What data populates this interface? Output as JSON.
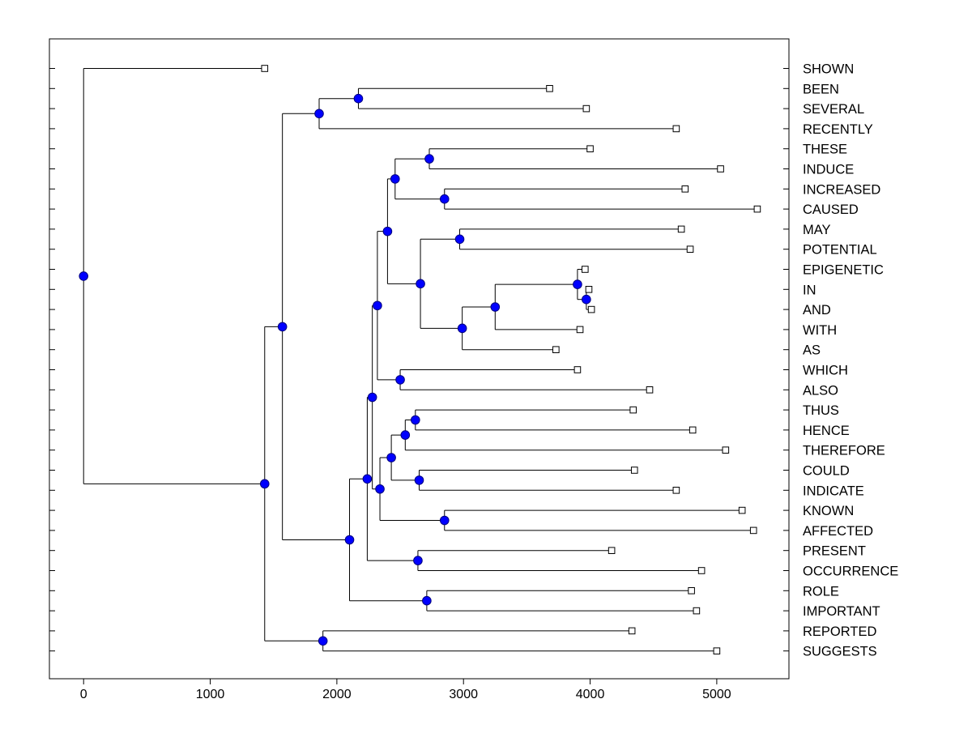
{
  "chart_data": {
    "type": "dendrogram",
    "title": "",
    "xlabel": "",
    "ylabel": "",
    "xlim": [
      -270,
      5570
    ],
    "x_ticks": [
      0,
      1000,
      2000,
      3000,
      4000,
      5000
    ],
    "x_tick_labels": [
      "0",
      "1000",
      "2000",
      "3000",
      "4000",
      "5000"
    ],
    "grid": false,
    "leaves": [
      {
        "label": "SHOWN",
        "x": 1430
      },
      {
        "label": "BEEN",
        "x": 3680
      },
      {
        "label": "SEVERAL",
        "x": 3970
      },
      {
        "label": "RECENTLY",
        "x": 4680
      },
      {
        "label": "THESE",
        "x": 4000
      },
      {
        "label": "INDUCE",
        "x": 5030
      },
      {
        "label": "INCREASED",
        "x": 4750
      },
      {
        "label": "CAUSED",
        "x": 5320
      },
      {
        "label": "MAY",
        "x": 4720
      },
      {
        "label": "POTENTIAL",
        "x": 4790
      },
      {
        "label": "EPIGENETIC",
        "x": 3960
      },
      {
        "label": "IN",
        "x": 3990
      },
      {
        "label": "AND",
        "x": 4010
      },
      {
        "label": "WITH",
        "x": 3920
      },
      {
        "label": "AS",
        "x": 3730
      },
      {
        "label": "WHICH",
        "x": 3900
      },
      {
        "label": "ALSO",
        "x": 4470
      },
      {
        "label": "THUS",
        "x": 4340
      },
      {
        "label": "HENCE",
        "x": 4810
      },
      {
        "label": "THEREFORE",
        "x": 5070
      },
      {
        "label": "COULD",
        "x": 4350
      },
      {
        "label": "INDICATE",
        "x": 4680
      },
      {
        "label": "KNOWN",
        "x": 5200
      },
      {
        "label": "AFFECTED",
        "x": 5290
      },
      {
        "label": "PRESENT",
        "x": 4170
      },
      {
        "label": "OCCURRENCE",
        "x": 4880
      },
      {
        "label": "ROLE",
        "x": 4800
      },
      {
        "label": "IMPORTANT",
        "x": 4840
      },
      {
        "label": "REPORTED",
        "x": 4330
      },
      {
        "label": "SUGGESTS",
        "x": 5000
      }
    ],
    "nodes": [
      {
        "id": "n1",
        "x": 2170,
        "children": [
          "L1",
          "L2"
        ]
      },
      {
        "id": "n2",
        "x": 1860,
        "children": [
          "n1",
          "L3"
        ]
      },
      {
        "id": "n3",
        "x": 2730,
        "children": [
          "L4",
          "L5"
        ]
      },
      {
        "id": "n4",
        "x": 2850,
        "children": [
          "L6",
          "L7"
        ]
      },
      {
        "id": "n5",
        "x": 2460,
        "children": [
          "n3",
          "n4"
        ]
      },
      {
        "id": "n6",
        "x": 2970,
        "children": [
          "L8",
          "L9"
        ]
      },
      {
        "id": "n7",
        "x": 3970,
        "children": [
          "L11",
          "L12"
        ]
      },
      {
        "id": "n8",
        "x": 3900,
        "children": [
          "L10",
          "n7"
        ]
      },
      {
        "id": "n9",
        "x": 3250,
        "children": [
          "n8",
          "L13"
        ]
      },
      {
        "id": "n10",
        "x": 2990,
        "children": [
          "n9",
          "L14"
        ]
      },
      {
        "id": "n11",
        "x": 2660,
        "children": [
          "n6",
          "n10"
        ]
      },
      {
        "id": "n12",
        "x": 2400,
        "children": [
          "n5",
          "n11"
        ]
      },
      {
        "id": "n13",
        "x": 2500,
        "children": [
          "L15",
          "L16"
        ]
      },
      {
        "id": "n14",
        "x": 2320,
        "children": [
          "n12",
          "n13"
        ]
      },
      {
        "id": "n15",
        "x": 2620,
        "children": [
          "L17",
          "L18"
        ]
      },
      {
        "id": "n16",
        "x": 2540,
        "children": [
          "n15",
          "L19"
        ]
      },
      {
        "id": "n17",
        "x": 2650,
        "children": [
          "L20",
          "L21"
        ]
      },
      {
        "id": "n18",
        "x": 2430,
        "children": [
          "n16",
          "n17"
        ]
      },
      {
        "id": "n19",
        "x": 2850,
        "children": [
          "L22",
          "L23"
        ]
      },
      {
        "id": "n20",
        "x": 2340,
        "children": [
          "n18",
          "n19"
        ]
      },
      {
        "id": "n21",
        "x": 2280,
        "children": [
          "n14",
          "n20"
        ]
      },
      {
        "id": "n22",
        "x": 2640,
        "children": [
          "L24",
          "L25"
        ]
      },
      {
        "id": "n23",
        "x": 2240,
        "children": [
          "n21",
          "n22"
        ]
      },
      {
        "id": "n24",
        "x": 2710,
        "children": [
          "L26",
          "L27"
        ]
      },
      {
        "id": "n25",
        "x": 2100,
        "children": [
          "n23",
          "n24"
        ]
      },
      {
        "id": "n26",
        "x": 1570,
        "children": [
          "n2",
          "n25"
        ]
      },
      {
        "id": "n27",
        "x": 1890,
        "children": [
          "L28",
          "L29"
        ]
      },
      {
        "id": "n28",
        "x": 1430,
        "children": [
          "n26",
          "n27"
        ]
      },
      {
        "id": "n29",
        "x": 0,
        "children": [
          "L0",
          "n28"
        ]
      }
    ],
    "root": "n29",
    "colors": {
      "node_fill": "#0000ff",
      "node_stroke": "#000080",
      "leaf_fill": "#ffffff",
      "line": "#000000"
    }
  }
}
